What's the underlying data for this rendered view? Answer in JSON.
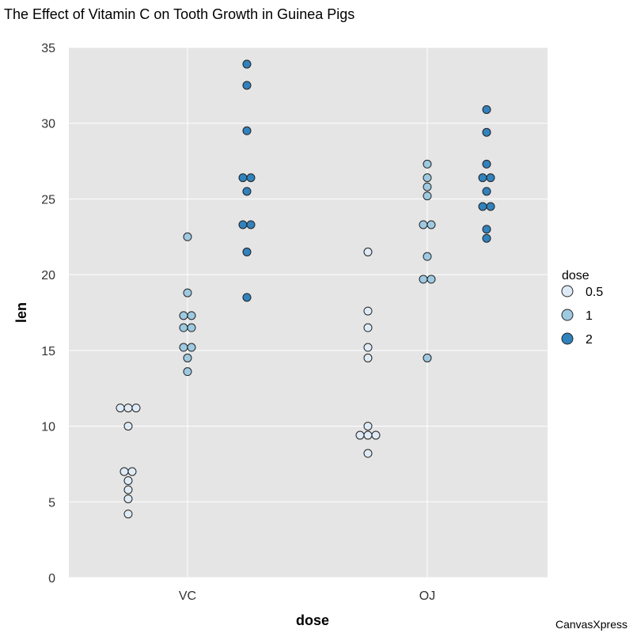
{
  "chart_data": {
    "type": "scatter",
    "title": "The Effect of Vitamin C on Tooth Growth in Guinea Pigs",
    "xlabel": "dose",
    "ylabel": "len",
    "categories": [
      "VC",
      "OJ"
    ],
    "ylim": [
      0,
      35
    ],
    "yticks": [
      0,
      5,
      10,
      15,
      20,
      25,
      30,
      35
    ],
    "grid": true,
    "legend": {
      "title": "dose",
      "placement": "right"
    },
    "series": [
      {
        "name": "0.5",
        "color": "#DEEBF7",
        "values": {
          "VC": [
            4.2,
            11.5,
            7.3,
            5.8,
            6.4,
            10.0,
            11.2,
            11.2,
            5.2,
            7.0
          ],
          "OJ": [
            15.2,
            21.5,
            17.6,
            9.7,
            14.5,
            10.0,
            8.2,
            9.4,
            16.5,
            9.7
          ]
        }
      },
      {
        "name": "1",
        "color": "#9ECAE1",
        "values": {
          "VC": [
            16.5,
            16.5,
            15.2,
            17.3,
            22.5,
            17.3,
            13.6,
            14.5,
            18.8,
            15.5
          ],
          "OJ": [
            19.7,
            23.3,
            23.6,
            26.4,
            20.0,
            25.2,
            25.8,
            21.2,
            14.5,
            27.3
          ]
        }
      },
      {
        "name": "2",
        "color": "#3182BD",
        "values": {
          "VC": [
            23.6,
            18.5,
            33.9,
            25.5,
            26.4,
            32.5,
            26.7,
            21.5,
            23.3,
            29.5
          ],
          "OJ": [
            25.5,
            26.4,
            22.4,
            24.5,
            24.8,
            30.9,
            26.4,
            27.3,
            29.4,
            23.0
          ]
        }
      }
    ]
  },
  "watermark": "CanvasXpress"
}
